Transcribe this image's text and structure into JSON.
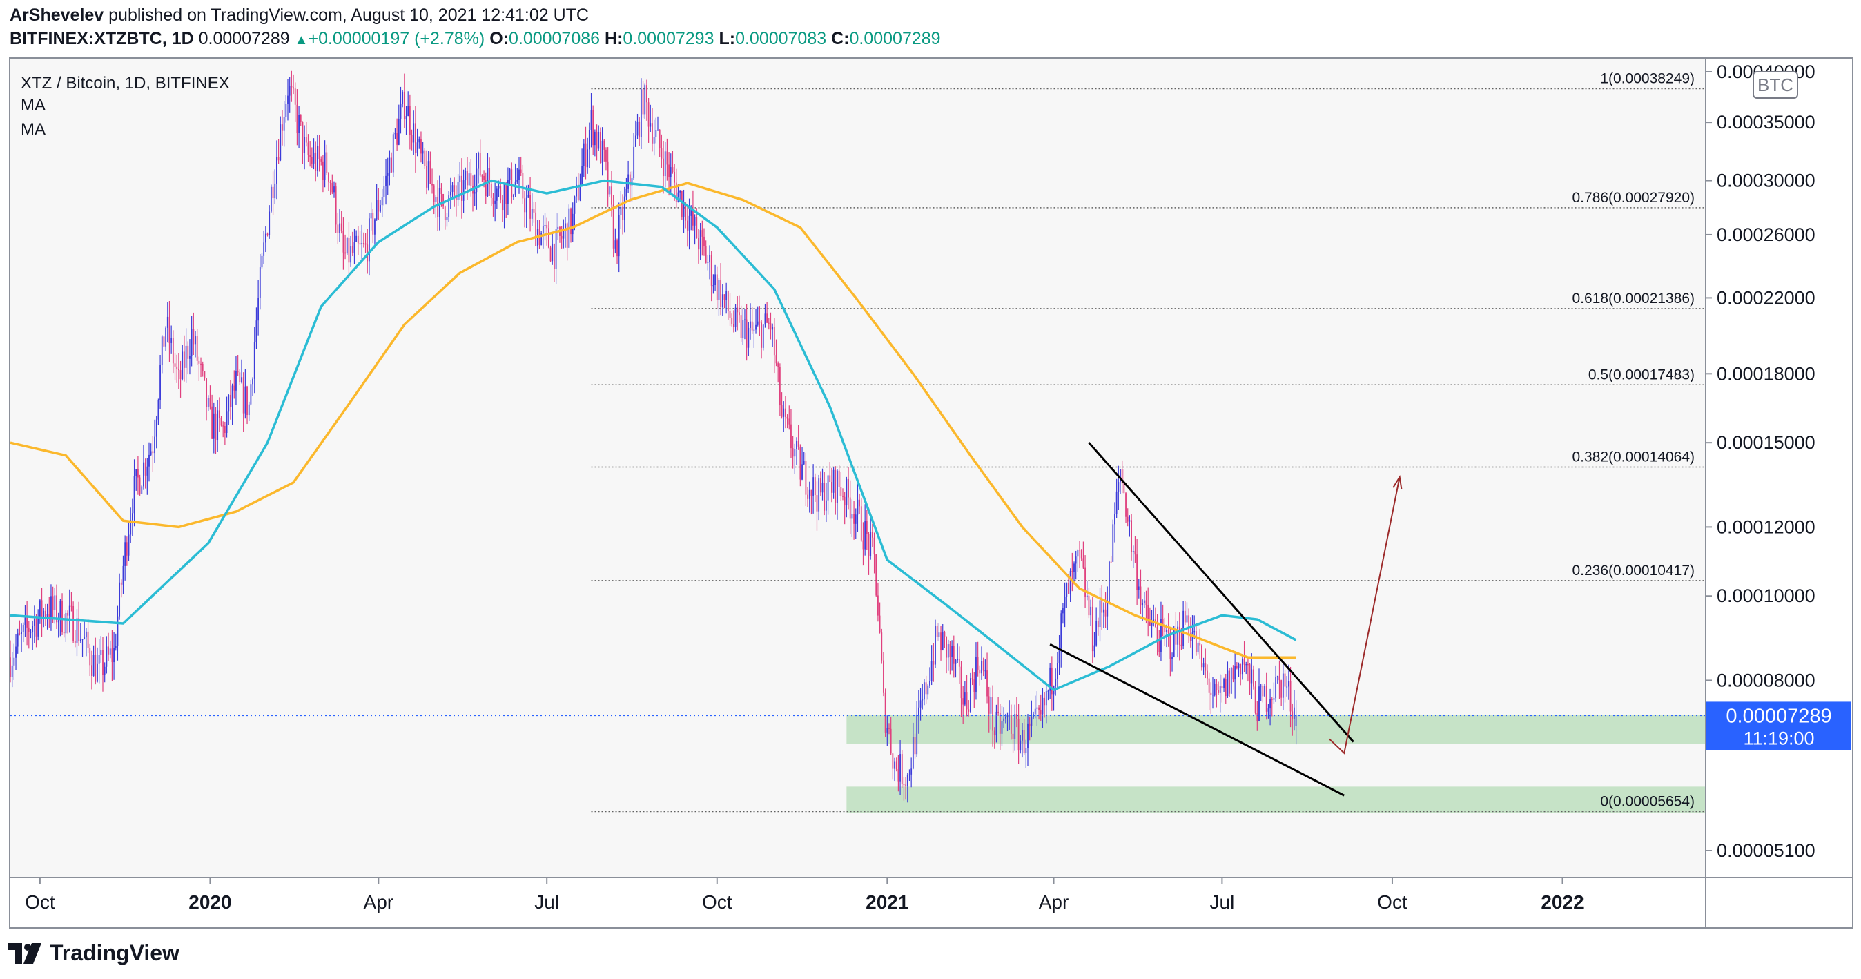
{
  "header": {
    "publisher_line_user": "ArShevelev",
    "publisher_line_rest": " published on TradingView.com, August 10, 2021 12:41:02 UTC",
    "symbol": "BITFINEX:XTZBTC, 1D",
    "last": "0.00007289",
    "change_arrow": "▲",
    "change": "+0.00000197 (+2.78%)",
    "o_label": "O:",
    "o": "0.00007086",
    "h_label": "H:",
    "h": "0.00007293",
    "l_label": "L:",
    "l": "0.00007083",
    "c_label": "C:",
    "c": "0.00007289"
  },
  "legend": {
    "title": "XTZ / Bitcoin, 1D, BITFINEX",
    "ma1": "MA",
    "ma2": "MA"
  },
  "footer": {
    "brand": "TradingView"
  },
  "colors": {
    "up": "#3c3cd9",
    "down": "#e0407e",
    "ma_fast": "#2bbcd4",
    "ma_slow": "#fbb82c",
    "zone": "#a5d6a7",
    "price_label": "#2962ff",
    "arrow": "#9c2a2a",
    "trendline": "#000000"
  },
  "chart_data": {
    "type": "candlestick",
    "currency_badge": "BTC",
    "price_axis_labels": [
      "0.00040000",
      "0.00035000",
      "0.00030000",
      "0.00026000",
      "0.00022000",
      "0.00018000",
      "0.00015000",
      "0.00012000",
      "0.00010000",
      "0.00008000",
      "0.00005100"
    ],
    "time_axis_labels": [
      "Oct",
      "2020",
      "Apr",
      "Jul",
      "Oct",
      "2021",
      "Apr",
      "Jul",
      "Oct",
      "2022"
    ],
    "last_price_label": "0.00007289",
    "countdown_label": "11:19:00",
    "fib_levels": [
      {
        "label": "1(0.00038249)",
        "price": 0.00038249
      },
      {
        "label": "0.786(0.00027920)",
        "price": 0.0002792
      },
      {
        "label": "0.618(0.00021386)",
        "price": 0.00021386
      },
      {
        "label": "0.5(0.00017483)",
        "price": 0.00017483
      },
      {
        "label": "0.382(0.00014064)",
        "price": 0.00014064
      },
      {
        "label": "0.236(0.00010417)",
        "price": 0.00010417
      },
      {
        "label": "0(0.00005654)",
        "price": 5.654e-05
      }
    ],
    "support_zones": [
      {
        "from": 6.76e-05,
        "to": 7.3e-05
      },
      {
        "from": 5.64e-05,
        "to": 6.04e-05
      }
    ],
    "price_path": [
      [
        "2019-09-15",
        8.5e-05
      ],
      [
        "2019-09-25",
        9.2e-05
      ],
      [
        "2019-10-05",
        9.7e-05
      ],
      [
        "2019-10-20",
        9.3e-05
      ],
      [
        "2019-11-01",
        8.2e-05
      ],
      [
        "2019-11-10",
        8.6e-05
      ],
      [
        "2019-11-20",
        0.00013
      ],
      [
        "2019-12-01",
        0.00015
      ],
      [
        "2019-12-08",
        0.000205
      ],
      [
        "2019-12-15",
        0.000175
      ],
      [
        "2019-12-22",
        0.0002
      ],
      [
        "2020-01-01",
        0.000158
      ],
      [
        "2020-01-08",
        0.000155
      ],
      [
        "2020-01-15",
        0.000175
      ],
      [
        "2020-01-22",
        0.000165
      ],
      [
        "2020-02-01",
        0.00027
      ],
      [
        "2020-02-12",
        0.000385
      ],
      [
        "2020-02-22",
        0.00032
      ],
      [
        "2020-03-05",
        0.00031
      ],
      [
        "2020-03-13",
        0.000245
      ],
      [
        "2020-03-25",
        0.00025
      ],
      [
        "2020-04-05",
        0.0003
      ],
      [
        "2020-04-15",
        0.00037
      ],
      [
        "2020-04-25",
        0.00031
      ],
      [
        "2020-05-05",
        0.00028
      ],
      [
        "2020-05-15",
        0.00029
      ],
      [
        "2020-05-25",
        0.00031
      ],
      [
        "2020-06-05",
        0.00029
      ],
      [
        "2020-06-15",
        0.0003
      ],
      [
        "2020-06-25",
        0.000265
      ],
      [
        "2020-07-05",
        0.00025
      ],
      [
        "2020-07-15",
        0.00027
      ],
      [
        "2020-07-25",
        0.00035
      ],
      [
        "2020-08-01",
        0.000315
      ],
      [
        "2020-08-07",
        0.00025
      ],
      [
        "2020-08-15",
        0.0003
      ],
      [
        "2020-08-22",
        0.000375
      ],
      [
        "2020-08-30",
        0.00033
      ],
      [
        "2020-09-10",
        0.00029
      ],
      [
        "2020-09-20",
        0.00026
      ],
      [
        "2020-09-30",
        0.00023
      ],
      [
        "2020-10-10",
        0.000205
      ],
      [
        "2020-10-20",
        0.0002
      ],
      [
        "2020-10-30",
        0.000205
      ],
      [
        "2020-11-05",
        0.00016
      ],
      [
        "2020-11-15",
        0.00014
      ],
      [
        "2020-11-25",
        0.00013
      ],
      [
        "2020-12-05",
        0.000135
      ],
      [
        "2020-12-15",
        0.000125
      ],
      [
        "2020-12-25",
        0.00011
      ],
      [
        "2020-12-30",
        7.5e-05
      ],
      [
        "2021-01-05",
        6.4e-05
      ],
      [
        "2021-01-12",
        6.2e-05
      ],
      [
        "2021-01-20",
        7.5e-05
      ],
      [
        "2021-01-28",
        9e-05
      ],
      [
        "2021-02-05",
        8.5e-05
      ],
      [
        "2021-02-12",
        7.5e-05
      ],
      [
        "2021-02-20",
        8.5e-05
      ],
      [
        "2021-02-28",
        7e-05
      ],
      [
        "2021-03-08",
        7.2e-05
      ],
      [
        "2021-03-15",
        6.8e-05
      ],
      [
        "2021-03-25",
        7.2e-05
      ],
      [
        "2021-04-01",
        8.2e-05
      ],
      [
        "2021-04-08",
        0.0001
      ],
      [
        "2021-04-15",
        0.00011
      ],
      [
        "2021-04-22",
        9e-05
      ],
      [
        "2021-04-30",
        0.0001
      ],
      [
        "2021-05-07",
        0.00014
      ],
      [
        "2021-05-13",
        0.000115
      ],
      [
        "2021-05-20",
        9.5e-05
      ],
      [
        "2021-05-28",
        9e-05
      ],
      [
        "2021-06-05",
        8.8e-05
      ],
      [
        "2021-06-12",
        9.5e-05
      ],
      [
        "2021-06-20",
        8.3e-05
      ],
      [
        "2021-06-28",
        7.5e-05
      ],
      [
        "2021-07-05",
        8e-05
      ],
      [
        "2021-07-12",
        8.5e-05
      ],
      [
        "2021-07-20",
        7.5e-05
      ],
      [
        "2021-07-28",
        7.8e-05
      ],
      [
        "2021-08-03",
        8e-05
      ],
      [
        "2021-08-10",
        7.289e-05
      ]
    ],
    "ma_fast": [
      [
        "2019-09-15",
        9.5e-05
      ],
      [
        "2019-11-15",
        9.3e-05
      ],
      [
        "2019-12-31",
        0.000115
      ],
      [
        "2020-02-01",
        0.00015
      ],
      [
        "2020-03-01",
        0.000215
      ],
      [
        "2020-04-01",
        0.000255
      ],
      [
        "2020-05-01",
        0.00028
      ],
      [
        "2020-06-01",
        0.0003
      ],
      [
        "2020-07-01",
        0.00029
      ],
      [
        "2020-08-01",
        0.0003
      ],
      [
        "2020-09-01",
        0.000295
      ],
      [
        "2020-10-01",
        0.000265
      ],
      [
        "2020-11-01",
        0.000225
      ],
      [
        "2020-12-01",
        0.000165
      ],
      [
        "2021-01-01",
        0.00011
      ],
      [
        "2021-02-01",
        9.8e-05
      ],
      [
        "2021-03-01",
        8.8e-05
      ],
      [
        "2021-04-01",
        7.8e-05
      ],
      [
        "2021-05-01",
        8.3e-05
      ],
      [
        "2021-06-01",
        9e-05
      ],
      [
        "2021-07-01",
        9.5e-05
      ],
      [
        "2021-07-20",
        9.4e-05
      ],
      [
        "2021-08-10",
        8.9e-05
      ]
    ],
    "ma_slow": [
      [
        "2019-09-15",
        0.00015
      ],
      [
        "2019-10-15",
        0.000145
      ],
      [
        "2019-11-15",
        0.000122
      ],
      [
        "2019-12-15",
        0.00012
      ],
      [
        "2020-01-15",
        0.000125
      ],
      [
        "2020-02-15",
        0.000135
      ],
      [
        "2020-03-15",
        0.000165
      ],
      [
        "2020-04-15",
        0.000205
      ],
      [
        "2020-05-15",
        0.000235
      ],
      [
        "2020-06-15",
        0.000255
      ],
      [
        "2020-07-15",
        0.000265
      ],
      [
        "2020-08-15",
        0.000285
      ],
      [
        "2020-09-15",
        0.000298
      ],
      [
        "2020-10-15",
        0.000285
      ],
      [
        "2020-11-15",
        0.000265
      ],
      [
        "2020-12-15",
        0.00022
      ],
      [
        "2021-01-15",
        0.00018
      ],
      [
        "2021-02-15",
        0.000145
      ],
      [
        "2021-03-15",
        0.00012
      ],
      [
        "2021-04-15",
        0.000102
      ],
      [
        "2021-05-15",
        9.5e-05
      ],
      [
        "2021-06-15",
        9e-05
      ],
      [
        "2021-07-15",
        8.5e-05
      ],
      [
        "2021-08-10",
        8.5e-05
      ]
    ],
    "trendlines": [
      {
        "from": [
          "2021-04-20",
          0.00015
        ],
        "to": [
          "2021-09-10",
          6.8e-05
        ]
      },
      {
        "from": [
          "2021-03-30",
          8.8e-05
        ],
        "to": [
          "2021-09-05",
          5.9e-05
        ]
      }
    ],
    "projection_arrow": [
      [
        "2021-08-28",
        6.85e-05
      ],
      [
        "2021-09-05",
        6.6e-05
      ],
      [
        "2021-10-05",
        0.000137
      ]
    ]
  }
}
